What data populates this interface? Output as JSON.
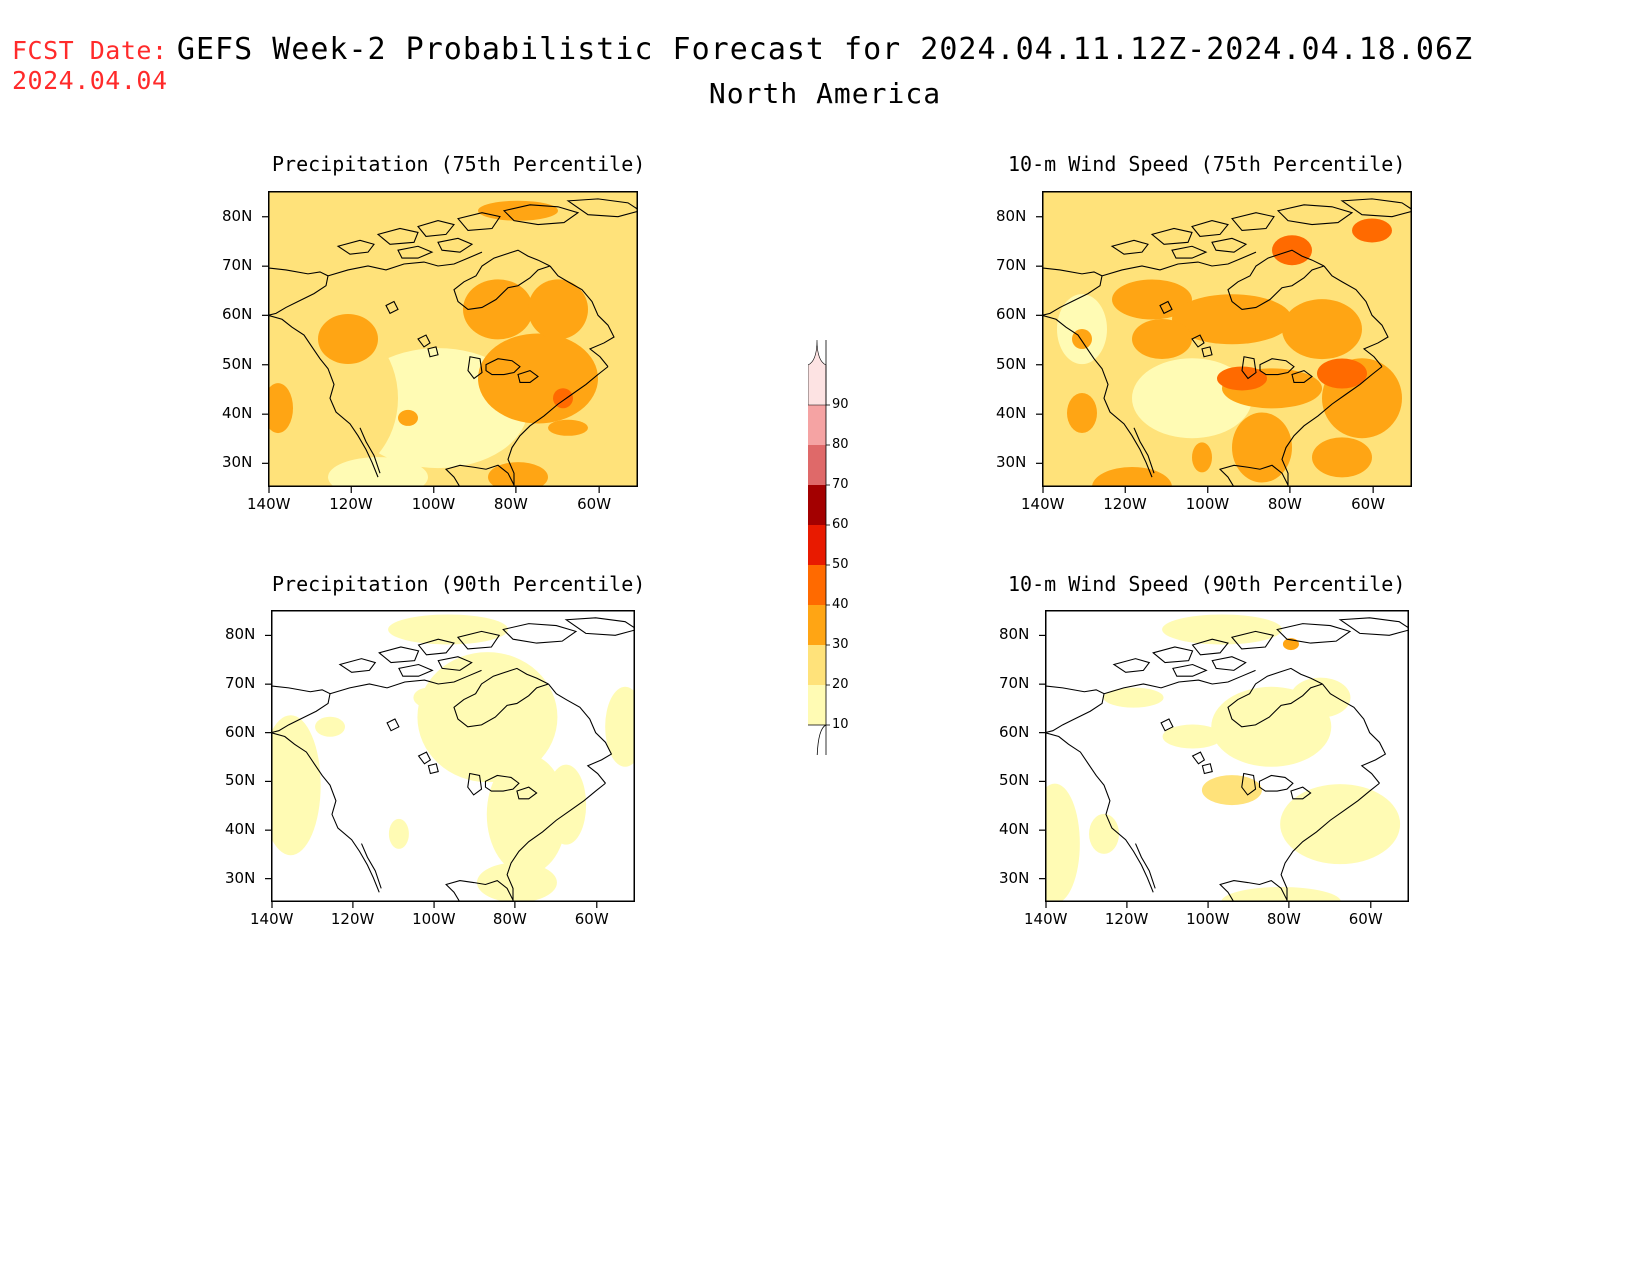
{
  "header": {
    "fcst_label": "FCST Date:",
    "fcst_date": "2024.04.04",
    "title": "GEFS Week-2 Probabilistic Forecast for 2024.04.11.12Z-2024.04.18.06Z",
    "subtitle": "North America"
  },
  "panels": [
    {
      "id": "precip75",
      "title": "Precipitation (75th Percentile)"
    },
    {
      "id": "wind75",
      "title": "10-m Wind Speed (75th Percentile)"
    },
    {
      "id": "precip90",
      "title": "Precipitation (90th Percentile)"
    },
    {
      "id": "wind90",
      "title": "10-m Wind Speed (90th Percentile)"
    }
  ],
  "axes": {
    "lat_labels": [
      "80N",
      "70N",
      "60N",
      "50N",
      "40N",
      "30N"
    ],
    "lon_labels": [
      "140W",
      "120W",
      "100W",
      "80W",
      "60W"
    ]
  },
  "colorbar": {
    "levels": [
      "10",
      "20",
      "30",
      "40",
      "50",
      "60",
      "70",
      "80",
      "90"
    ],
    "colors": [
      "#fffbb4",
      "#ffe27a",
      "#ffa514",
      "#ff6a00",
      "#e81a00",
      "#a30000",
      "#df6969",
      "#f5a3a3",
      "#fde3e3"
    ]
  }
}
